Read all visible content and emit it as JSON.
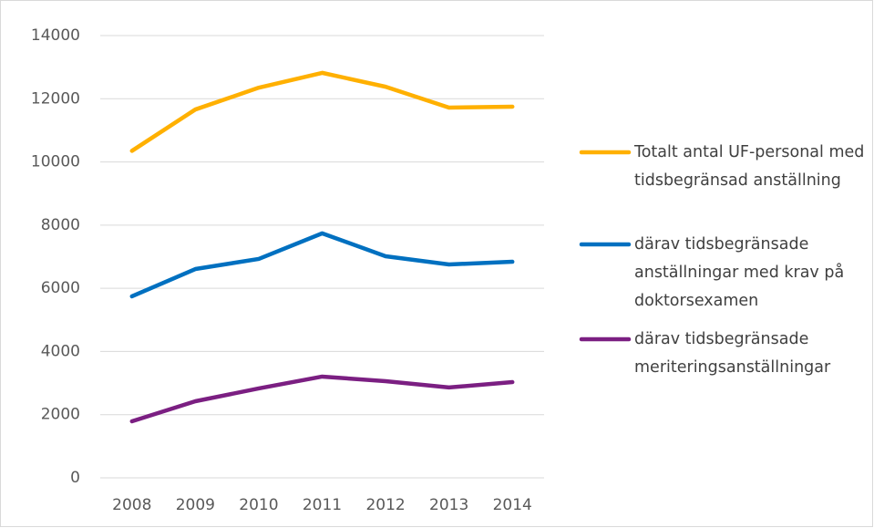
{
  "chart_data": {
    "type": "line",
    "categories": [
      "2008",
      "2009",
      "2010",
      "2011",
      "2012",
      "2013",
      "2014"
    ],
    "series": [
      {
        "name": "Totalt antal UF-personal med tidsbegränsad anställning",
        "color": "#ffb000",
        "values": [
          10350,
          11660,
          12350,
          12820,
          12380,
          11720,
          11750
        ]
      },
      {
        "name": "därav tidsbegränsade anställningar med krav på doktorsexamen",
        "color": "#0070c0",
        "values": [
          5745,
          6610,
          6930,
          7740,
          7015,
          6755,
          6840
        ]
      },
      {
        "name": "därav tidsbegränsade meriteringsanställningar",
        "color": "#7b1f82",
        "values": [
          1790,
          2425,
          2830,
          3205,
          3060,
          2860,
          3030
        ]
      }
    ],
    "ylim": [
      0,
      14000
    ],
    "yticks": [
      0,
      2000,
      4000,
      6000,
      8000,
      10000,
      12000,
      14000
    ],
    "grid": true,
    "legend": "right"
  }
}
